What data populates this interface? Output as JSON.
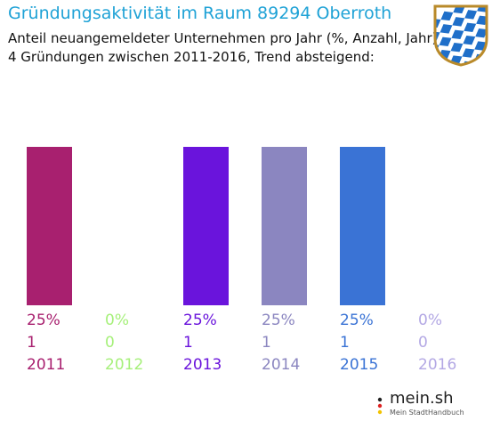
{
  "title": "Gründungsaktivität im Raum 89294 Oberroth",
  "subtitle_line1": "Anteil neuangemeldeter Unternehmen pro Jahr (%, Anzahl, Jahr)",
  "subtitle_line2": "4 Gründungen zwischen 2011-2016, Trend absteigend:",
  "logo": {
    "brand": "mein.sh",
    "tagline": "Mein StadtHandbuch"
  },
  "icons": {
    "crest": "bavaria-crest-icon",
    "logo": "mein-sh-logo-icon"
  },
  "chart_data": {
    "type": "bar",
    "categories": [
      "2011",
      "2012",
      "2013",
      "2014",
      "2015",
      "2016"
    ],
    "percent_labels": [
      "25%",
      "0%",
      "25%",
      "25%",
      "25%",
      "0%"
    ],
    "count_labels": [
      "1",
      "0",
      "1",
      "1",
      "1",
      "0"
    ],
    "values": [
      25,
      0,
      25,
      25,
      25,
      0
    ],
    "colors": [
      "#a8206f",
      "#a6f07a",
      "#6a14dc",
      "#8b86c0",
      "#3a73d5",
      "#b3a8e4"
    ],
    "ylim": [
      0,
      25
    ],
    "grid": false,
    "legend": "none"
  }
}
